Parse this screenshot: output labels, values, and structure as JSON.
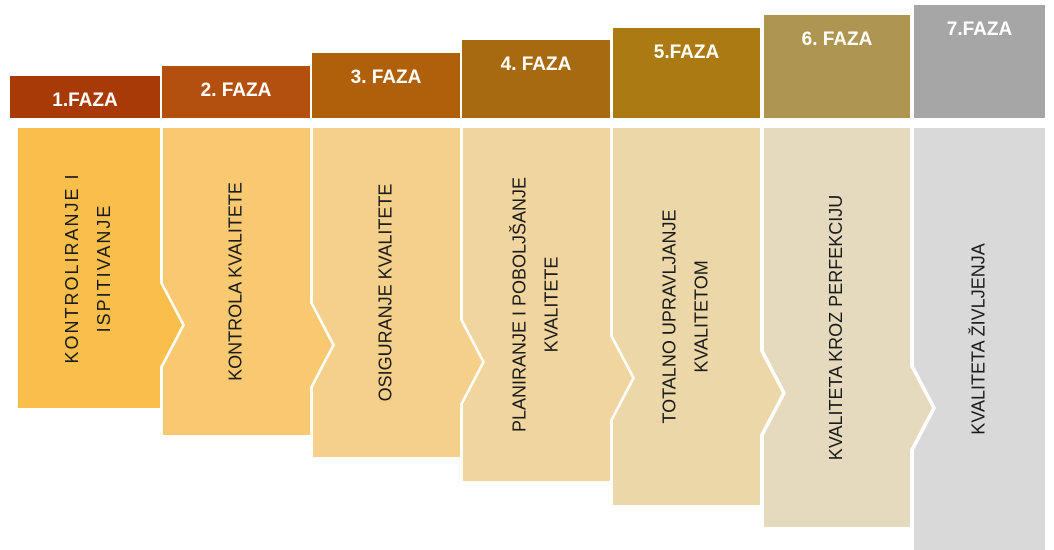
{
  "phases": [
    {
      "header": "1.FAZA",
      "lines": [
        "KONTROLIRANJE I",
        "ISPITIVANJE"
      ]
    },
    {
      "header": "2. FAZA",
      "lines": [
        "KONTROLA KVALITETE"
      ]
    },
    {
      "header": "3. FAZA",
      "lines": [
        "OSIGURANJE KVALITETE"
      ]
    },
    {
      "header": "4. FAZA",
      "lines": [
        "PLANIRANJE I POBOLJŠANJE",
        "KVALITETE"
      ]
    },
    {
      "header": "5.FAZA",
      "lines": [
        "TOTALNO UPRAVLJANJE",
        "KVALITETOM"
      ]
    },
    {
      "header": "6. FAZA",
      "lines": [
        "KVALITETA KROZ PERFEKCIJU"
      ]
    },
    {
      "header": "7.FAZA",
      "lines": [
        "KVALITETA ŽIVLJENJA"
      ]
    }
  ]
}
